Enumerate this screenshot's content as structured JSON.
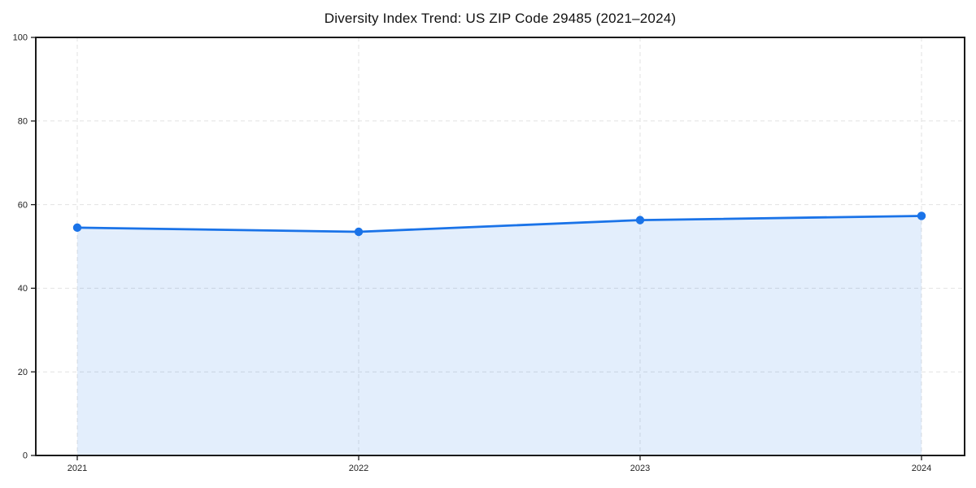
{
  "chart_data": {
    "type": "area",
    "title": "Diversity Index Trend: US ZIP Code 29485 (2021–2024)",
    "categories": [
      "2021",
      "2022",
      "2023",
      "2024"
    ],
    "series": [
      {
        "name": "Diversity Index",
        "values": [
          54.5,
          53.5,
          56.3,
          57.3
        ]
      }
    ],
    "xlabel": "",
    "ylabel": "",
    "ylim": [
      0,
      100
    ],
    "yticks": [
      0,
      20,
      40,
      60,
      80,
      100
    ],
    "grid": "dashed",
    "legend_position": "none",
    "colors": {
      "line": "#1a73e8",
      "marker": "#1a73e8",
      "fill": "#1a73e8",
      "fill_opacity": 0.12,
      "grid": "#e2e2e2",
      "spine": "#1a1a1a",
      "tick_label": "#222222",
      "title": "#111111"
    }
  }
}
